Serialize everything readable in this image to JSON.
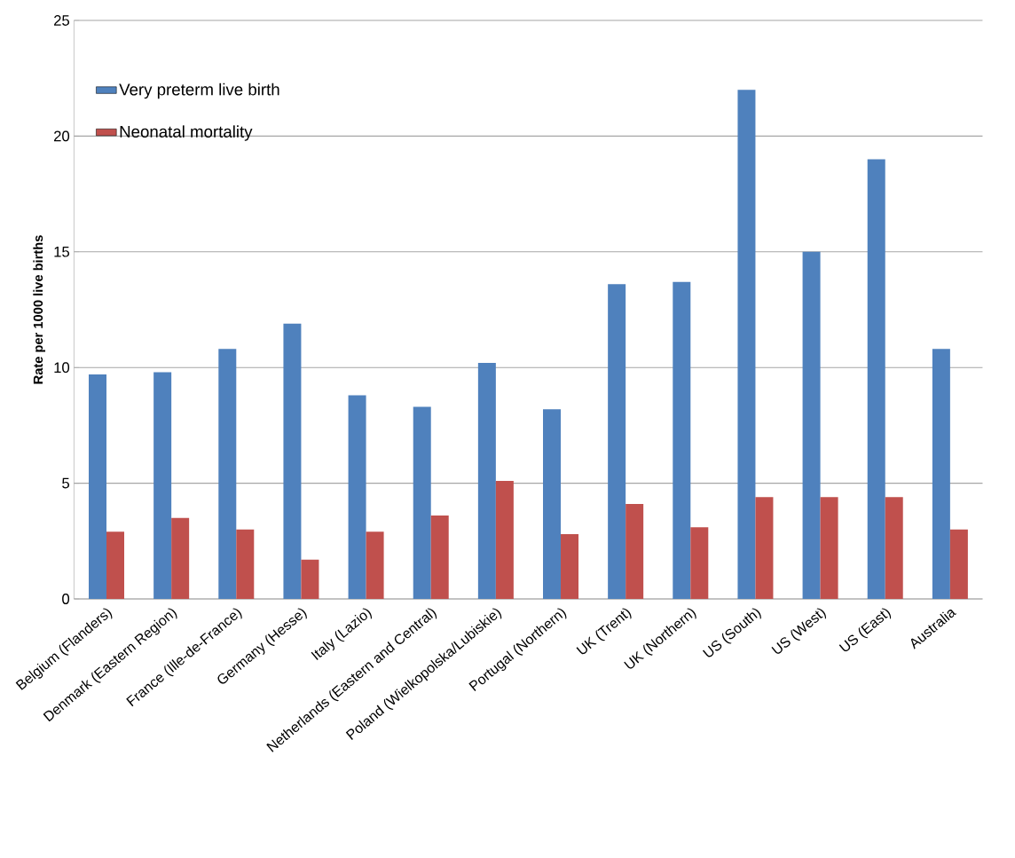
{
  "chart_data": {
    "type": "bar",
    "ylabel": "Rate per 1000 live births",
    "categories": [
      "Belgium (Flanders)",
      "Denmark (Eastern Region)",
      "France (Ille-de-France)",
      "Germany (Hesse)",
      "Italy (Lazio)",
      "Netherlands (Eastern and Central)",
      "Poland (Wielkopolska/Lubiskie)",
      "Portugal (Northern)",
      "UK (Trent)",
      "UK (Northern)",
      "US (South)",
      "US (West)",
      "US (East)",
      "Australia"
    ],
    "series": [
      {
        "name": "Very preterm live birth",
        "color": "#4f81bd",
        "values": [
          9.7,
          9.8,
          10.8,
          11.9,
          8.8,
          8.3,
          10.2,
          8.2,
          13.6,
          13.7,
          22.0,
          15.0,
          19.0,
          10.8
        ]
      },
      {
        "name": "Neonatal mortality",
        "color": "#c0504d",
        "values": [
          2.9,
          3.5,
          3.0,
          1.7,
          2.9,
          3.6,
          5.1,
          2.8,
          4.1,
          3.1,
          4.4,
          4.4,
          4.4,
          3.0
        ]
      }
    ],
    "ylim": [
      0,
      25
    ],
    "yticks": [
      0,
      5,
      10,
      15,
      20,
      25
    ],
    "grid": "y",
    "legend": "top left"
  }
}
